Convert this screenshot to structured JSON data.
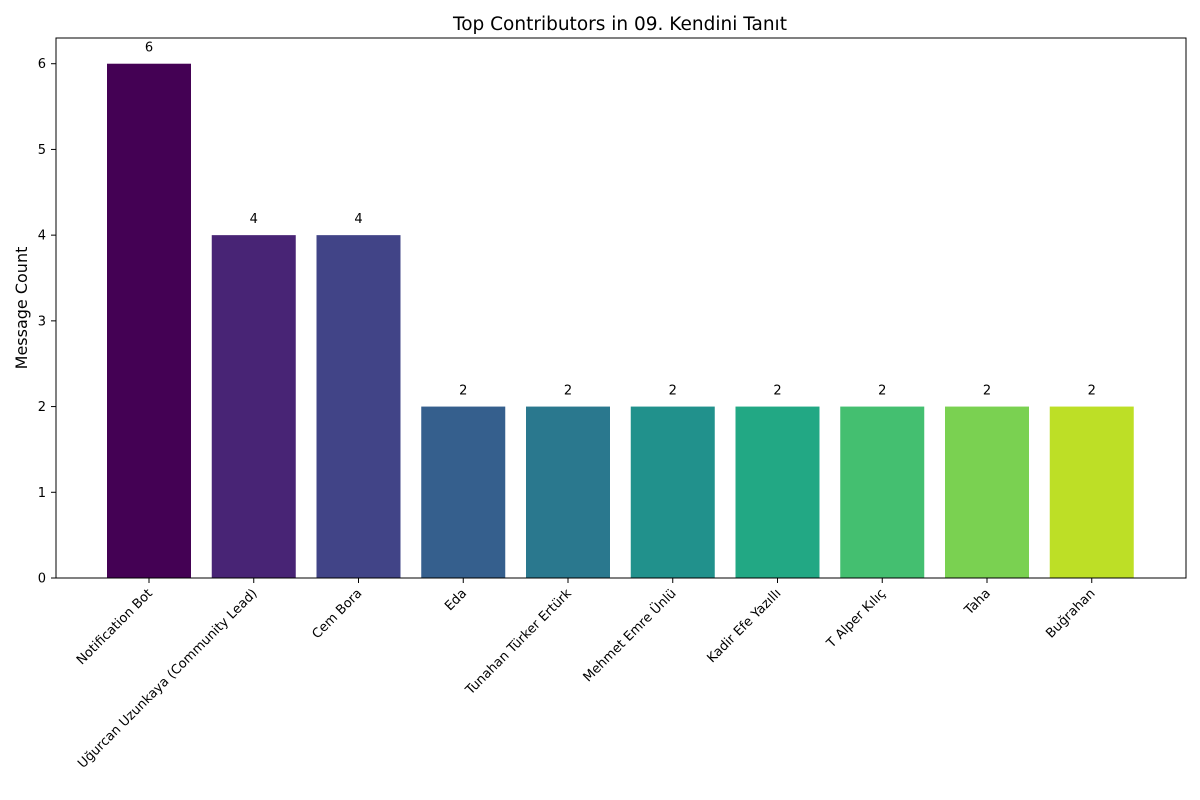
{
  "chart_data": {
    "type": "bar",
    "title": "Top Contributors in 09. Kendini Tanıt",
    "xlabel": "",
    "ylabel": "Message Count",
    "ylim": [
      0,
      6.3
    ],
    "yticks": [
      0,
      1,
      2,
      3,
      4,
      5,
      6
    ],
    "grid": false,
    "legend": "none",
    "categories": [
      "Notification Bot",
      "Uğurcan Uzunkaya (Community Lead)",
      "Cem Bora",
      "Eda",
      "Tunahan Türker Ertürk",
      "Mehmet Emre Ünlü",
      "Kadir Efe Yazıllı",
      "T Alper Kılıç",
      "Taha",
      "Buğrahan"
    ],
    "values": [
      6,
      4,
      4,
      2,
      2,
      2,
      2,
      2,
      2,
      2
    ],
    "colors": [
      "#440154",
      "#482475",
      "#414487",
      "#355f8d",
      "#2a788e",
      "#21918c",
      "#22a884",
      "#44bf70",
      "#7ad151",
      "#bddf26"
    ]
  }
}
